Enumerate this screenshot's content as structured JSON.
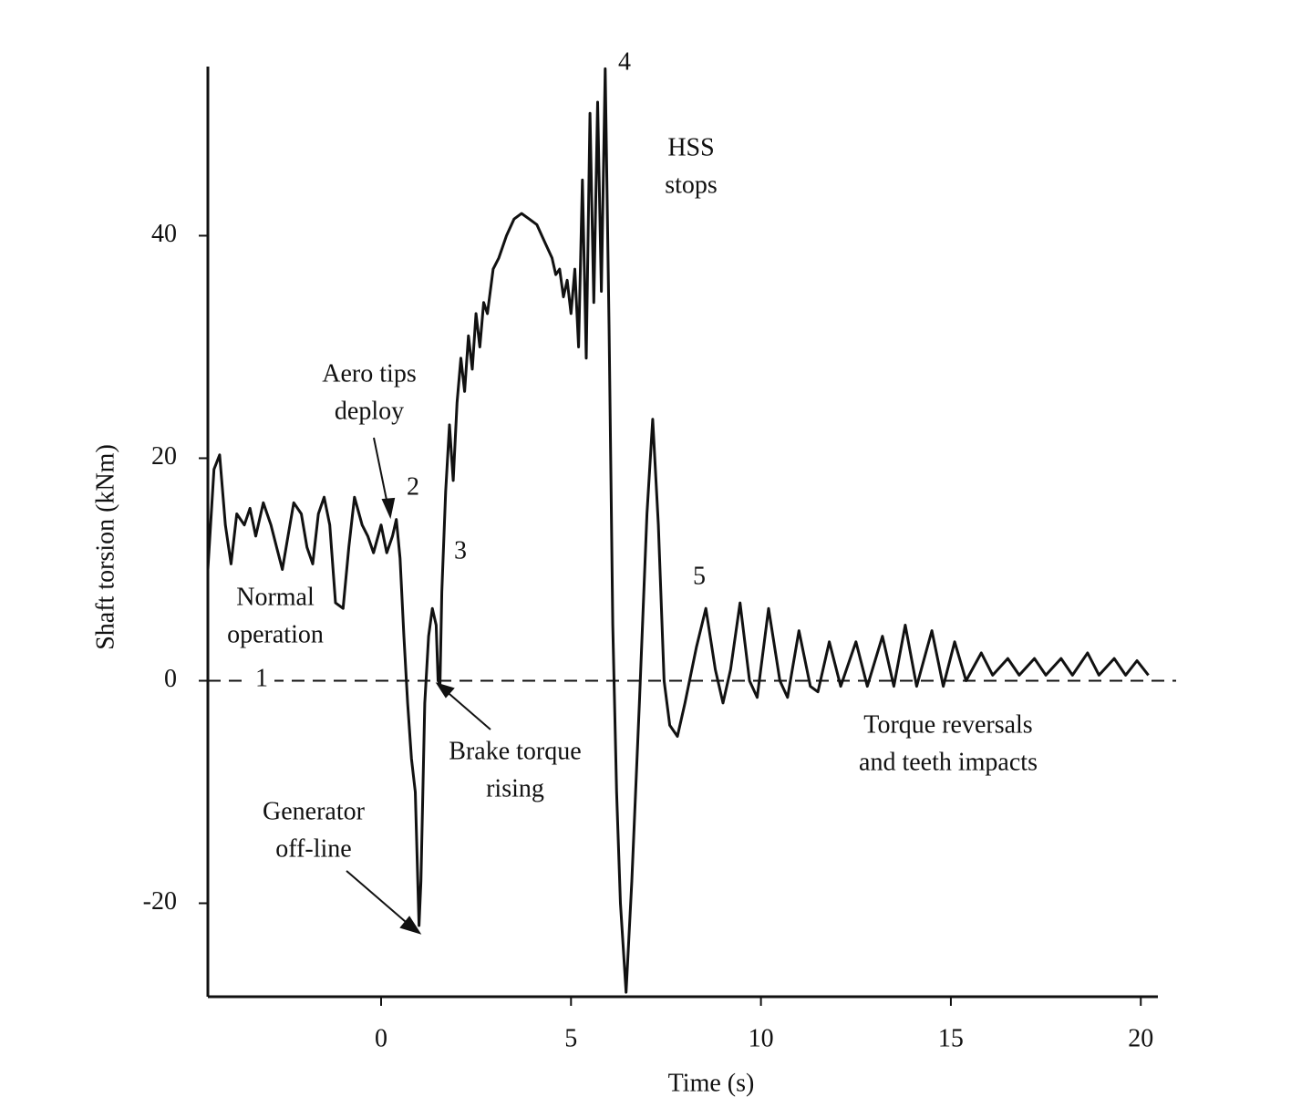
{
  "chart_data": {
    "type": "line",
    "x_label": "Time (s)",
    "y_label": "Shaft torsion (kNm)",
    "xlim": [
      -4.56,
      20.45
    ],
    "ylim": [
      -28.4,
      55.2
    ],
    "xticks": [
      0,
      5,
      10,
      15,
      20
    ],
    "yticks": [
      -20,
      0,
      20,
      40
    ],
    "hline": 0,
    "color": "#111111",
    "x": [
      -4.56,
      -4.4,
      -4.25,
      -4.1,
      -3.95,
      -3.8,
      -3.6,
      -3.45,
      -3.3,
      -3.1,
      -2.9,
      -2.75,
      -2.6,
      -2.45,
      -2.3,
      -2.1,
      -1.95,
      -1.8,
      -1.65,
      -1.5,
      -1.35,
      -1.2,
      -1.0,
      -0.85,
      -0.7,
      -0.5,
      -0.35,
      -0.2,
      0,
      0.15,
      0.3,
      0.4,
      0.5,
      0.6,
      0.7,
      0.8,
      0.9,
      1.0,
      1.05,
      1.15,
      1.25,
      1.35,
      1.45,
      1.5,
      1.55,
      1.6,
      1.7,
      1.8,
      1.9,
      2.0,
      2.1,
      2.2,
      2.3,
      2.4,
      2.5,
      2.6,
      2.7,
      2.8,
      2.95,
      3.1,
      3.3,
      3.5,
      3.7,
      3.9,
      4.1,
      4.3,
      4.5,
      4.6,
      4.7,
      4.8,
      4.9,
      5.0,
      5.1,
      5.2,
      5.3,
      5.4,
      5.5,
      5.6,
      5.7,
      5.8,
      5.9,
      6.0,
      6.1,
      6.2,
      6.3,
      6.45,
      6.6,
      6.8,
      7.0,
      7.15,
      7.3,
      7.45,
      7.6,
      7.8,
      8.0,
      8.3,
      8.55,
      8.8,
      9.0,
      9.2,
      9.45,
      9.7,
      9.9,
      10.2,
      10.5,
      10.7,
      11.0,
      11.3,
      11.5,
      11.8,
      12.1,
      12.5,
      12.8,
      13.2,
      13.5,
      13.8,
      14.1,
      14.5,
      14.8,
      15.1,
      15.4,
      15.8,
      16.1,
      16.5,
      16.8,
      17.2,
      17.5,
      17.9,
      18.2,
      18.6,
      18.9,
      19.3,
      19.6,
      19.9,
      20.2
    ],
    "values": [
      10,
      19,
      20.3,
      14,
      10.5,
      15,
      14,
      15.5,
      13,
      16,
      14,
      12,
      10,
      13,
      16,
      15,
      12,
      10.5,
      15,
      16.5,
      14,
      7,
      6.5,
      12,
      16.5,
      14,
      13,
      11.5,
      14,
      11.5,
      13,
      14.5,
      11,
      4,
      -2,
      -7,
      -10,
      -22,
      -18,
      -2,
      4,
      6.5,
      5,
      0,
      -0.3,
      8,
      17,
      23,
      18,
      25,
      29,
      26,
      31,
      28,
      33,
      30,
      34,
      33,
      37,
      38,
      40,
      41.5,
      42,
      41.5,
      41,
      39.5,
      38,
      36.5,
      37,
      34.5,
      36,
      33,
      37,
      30,
      45,
      29,
      51,
      34,
      52,
      35,
      55,
      32,
      5,
      -10,
      -20,
      -28,
      -18,
      -2,
      15,
      23.5,
      14,
      0,
      -4,
      -5,
      -2,
      3,
      6.5,
      1,
      -2,
      1,
      7,
      0,
      -1.5,
      6.5,
      0,
      -1.5,
      4.5,
      -0.5,
      -1,
      3.5,
      -0.5,
      3.5,
      -0.5,
      4,
      -0.5,
      5,
      -0.5,
      4.5,
      -0.5,
      3.5,
      0,
      2.5,
      0.5,
      2,
      0.5,
      2,
      0.5,
      2,
      0.5,
      2.5,
      0.5,
      2,
      0.5,
      1.8,
      0.5
    ],
    "annotations": [
      {
        "lines": [
          "Normal",
          "operation"
        ]
      },
      {
        "lines": [
          "Aero tips",
          "deploy"
        ]
      },
      {
        "lines": [
          "2"
        ]
      },
      {
        "lines": [
          "3"
        ]
      },
      {
        "lines": [
          "4"
        ]
      },
      {
        "lines": [
          "HSS",
          "stops"
        ]
      },
      {
        "lines": [
          "5"
        ]
      },
      {
        "lines": [
          "Brake torque",
          "rising"
        ]
      },
      {
        "lines": [
          "Generator",
          "off-line"
        ]
      },
      {
        "lines": [
          "Torque reversals",
          "and teeth impacts"
        ]
      },
      {
        "lines": [
          "1"
        ]
      }
    ]
  }
}
